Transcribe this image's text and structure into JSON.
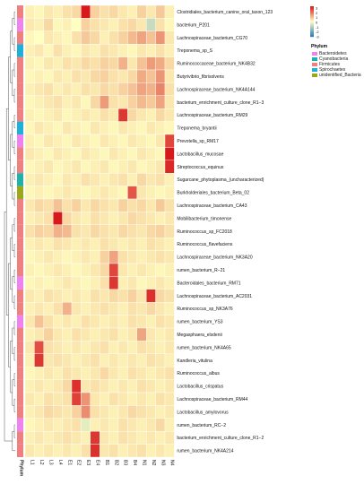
{
  "chart_data": {
    "type": "heatmap",
    "title": "",
    "xlabel": "",
    "ylabel": "",
    "columns": [
      "L1",
      "L2",
      "L3",
      "L4",
      "E1",
      "E2",
      "E3",
      "E4",
      "B1",
      "B2",
      "B3",
      "B4",
      "N1",
      "N2",
      "N3",
      "N4"
    ],
    "rows": [
      "Clostridiales_bacterium_canine_oral_taxon_123",
      "bacterium_P201",
      "Lachnospiraceae_bacterium_CG70",
      "Treponema_sp_S",
      "Ruminococcaceae_bacterium_NK4B32",
      "Butyrivibrio_fibrisolvens",
      "Lachnospiraceae_bacterium_NK4A144",
      "bacterium_enrichment_culture_clone_R1−3",
      "Lachnospiraceae_bacterium_RM29",
      "Treponema_bryantii",
      "Prevotella_sp_RM17",
      "Lactobacillus_mucosae",
      "Streptococcus_equinus",
      "Sugarcane_phytoplasma_(uncharacterized)",
      "Burkholderiales_bacterium_Beta_02",
      "Lachnospiraceae_bacterium_CA43",
      "Mobilibacterium_timonense",
      "Ruminococcus_sp_FC2018",
      "Ruminococcus_flavefaciens",
      "Lachnospiraceae_bacterium_NK3A20",
      "rumen_bacterium_R−21",
      "Bacteroidales_bacterium_RM71",
      "Lachnospiraceae_bacterium_AC2031",
      "Ruminococcus_sp_NK3A76",
      "rumen_bacterium_YS3",
      "Megasphaera_elsdenii",
      "rumen_bacterium_NK4A65",
      "Kandleria_vitulina",
      "Ruminococcus_albus",
      "Lactobacillus_crispatus",
      "Lachnospiraceae_bacterium_RM44",
      "Lactobacillus_amylovorus",
      "rumen_bacterium_RC−2",
      "bacterium_enrichment_culture_clone_R1−2",
      "rumen_bacterium_NK4A214"
    ],
    "row_phylum": [
      "Firmicutes",
      "Bacteroidetes",
      "Firmicutes",
      "Spirochaetes",
      "Firmicutes",
      "Firmicutes",
      "Firmicutes",
      "Firmicutes",
      "Firmicutes",
      "Spirochaetes",
      "Bacteroidetes",
      "Firmicutes",
      "Firmicutes",
      "Cyanobacteria",
      "unidentified_Bacteria",
      "Firmicutes",
      "Firmicutes",
      "Firmicutes",
      "Firmicutes",
      "Firmicutes",
      "Firmicutes",
      "Bacteroidetes",
      "Firmicutes",
      "Firmicutes",
      "Bacteroidetes",
      "Firmicutes",
      "Firmicutes",
      "Firmicutes",
      "Firmicutes",
      "Firmicutes",
      "Firmicutes",
      "Firmicutes",
      "Bacteroidetes",
      "Firmicutes",
      "Firmicutes"
    ],
    "values": [
      [
        0.2,
        0.1,
        0.3,
        0.2,
        0.4,
        0.5,
        3.0,
        0.6,
        0.4,
        0.5,
        0.3,
        0.2,
        0.6,
        0.3,
        0.7,
        0.2
      ],
      [
        0.3,
        0.2,
        0.5,
        0.1,
        0.2,
        0.0,
        0.6,
        0.4,
        0.3,
        0.2,
        0.4,
        0.5,
        0.3,
        -0.8,
        0.4,
        0.1
      ],
      [
        0.1,
        0.0,
        0.3,
        0.2,
        0.1,
        0.4,
        0.7,
        0.5,
        0.2,
        0.4,
        0.6,
        0.9,
        1.2,
        0.8,
        1.4,
        0.3
      ],
      [
        0.2,
        0.3,
        0.1,
        0.4,
        0.2,
        0.1,
        0.3,
        0.2,
        0.4,
        0.3,
        0.2,
        0.1,
        0.3,
        0.2,
        0.4,
        0.2
      ],
      [
        0.2,
        0.1,
        0.3,
        0.2,
        0.4,
        0.3,
        0.5,
        0.4,
        0.6,
        0.5,
        1.0,
        0.3,
        0.8,
        1.3,
        1.1,
        0.5
      ],
      [
        0.1,
        0.2,
        0.1,
        0.3,
        0.2,
        0.4,
        0.3,
        0.5,
        0.6,
        0.4,
        0.3,
        0.5,
        1.1,
        0.8,
        1.4,
        0.3
      ],
      [
        0.2,
        0.3,
        0.4,
        0.2,
        0.3,
        0.2,
        0.4,
        0.3,
        0.5,
        0.4,
        0.6,
        0.8,
        1.2,
        1.0,
        1.6,
        0.4
      ],
      [
        0.1,
        0.2,
        0.3,
        0.4,
        0.2,
        0.3,
        0.1,
        0.5,
        1.3,
        0.4,
        0.3,
        0.6,
        0.9,
        0.7,
        1.2,
        0.3
      ],
      [
        0.2,
        0.1,
        0.2,
        0.3,
        0.1,
        0.2,
        0.3,
        0.2,
        0.4,
        0.3,
        2.6,
        0.5,
        0.3,
        0.2,
        0.5,
        0.3
      ],
      [
        0.1,
        0.3,
        0.2,
        0.1,
        0.3,
        0.2,
        0.1,
        0.3,
        0.2,
        0.1,
        0.3,
        0.2,
        0.1,
        0.3,
        0.2,
        0.1
      ],
      [
        0.2,
        0.1,
        0.3,
        0.2,
        0.1,
        0.3,
        0.2,
        0.1,
        0.3,
        0.2,
        0.1,
        0.3,
        0.2,
        0.1,
        0.3,
        2.4
      ],
      [
        0.3,
        0.2,
        0.1,
        0.3,
        0.2,
        0.1,
        0.3,
        0.2,
        0.1,
        0.3,
        0.2,
        0.1,
        0.3,
        0.2,
        0.1,
        3.0
      ],
      [
        0.1,
        0.2,
        0.3,
        0.1,
        0.2,
        0.3,
        0.1,
        0.2,
        0.3,
        0.1,
        0.2,
        0.3,
        0.1,
        0.2,
        0.3,
        2.8
      ],
      [
        0.2,
        0.3,
        0.2,
        0.1,
        0.3,
        0.2,
        0.4,
        0.3,
        0.2,
        0.3,
        0.4,
        0.2,
        0.5,
        0.3,
        0.4,
        0.2
      ],
      [
        0.1,
        0.2,
        0.1,
        0.2,
        0.3,
        0.2,
        0.1,
        0.2,
        0.3,
        0.2,
        0.1,
        2.2,
        0.3,
        0.2,
        0.1,
        0.2
      ],
      [
        0.3,
        0.5,
        0.4,
        0.8,
        0.4,
        0.6,
        0.3,
        0.5,
        0.4,
        0.3,
        0.6,
        0.4,
        0.5,
        0.3,
        0.7,
        0.4
      ],
      [
        0.2,
        0.3,
        0.4,
        3.0,
        0.5,
        0.3,
        0.2,
        0.4,
        0.3,
        0.2,
        0.3,
        0.5,
        0.4,
        0.3,
        0.2,
        0.3
      ],
      [
        0.4,
        0.6,
        0.5,
        1.0,
        0.9,
        0.4,
        0.3,
        0.5,
        0.4,
        0.3,
        0.5,
        0.4,
        0.3,
        0.5,
        0.6,
        0.4
      ],
      [
        0.2,
        0.3,
        0.2,
        0.4,
        0.3,
        0.2,
        0.3,
        0.2,
        0.4,
        0.3,
        0.2,
        0.3,
        0.2,
        0.4,
        0.3,
        0.2
      ],
      [
        0.1,
        0.2,
        0.3,
        0.2,
        0.1,
        0.2,
        0.3,
        0.2,
        0.6,
        1.2,
        0.4,
        0.3,
        0.2,
        0.3,
        0.4,
        0.3
      ],
      [
        0.2,
        0.1,
        0.2,
        0.3,
        0.2,
        0.1,
        0.2,
        0.3,
        0.5,
        2.4,
        0.3,
        0.2,
        0.3,
        0.2,
        0.1,
        0.2
      ],
      [
        0.1,
        0.2,
        0.1,
        0.2,
        0.3,
        0.2,
        0.1,
        0.2,
        0.4,
        2.6,
        0.2,
        0.3,
        0.1,
        0.2,
        0.3,
        0.2
      ],
      [
        0.3,
        0.2,
        0.4,
        0.3,
        0.2,
        0.3,
        0.2,
        0.4,
        0.3,
        0.5,
        0.4,
        0.6,
        0.3,
        2.7,
        0.5,
        0.4
      ],
      [
        0.2,
        0.3,
        0.2,
        0.4,
        1.0,
        0.3,
        0.2,
        0.3,
        0.4,
        0.3,
        0.2,
        0.4,
        0.3,
        0.5,
        0.3,
        0.2
      ],
      [
        0.3,
        0.8,
        0.4,
        0.2,
        0.3,
        0.2,
        0.4,
        0.3,
        0.2,
        0.3,
        0.2,
        0.4,
        0.3,
        0.2,
        0.4,
        0.3
      ],
      [
        0.2,
        0.3,
        0.6,
        0.3,
        0.2,
        0.4,
        0.3,
        0.2,
        0.3,
        0.4,
        0.2,
        0.3,
        1.2,
        0.3,
        0.2,
        0.3
      ],
      [
        0.3,
        2.3,
        0.4,
        0.3,
        0.2,
        0.3,
        0.2,
        0.3,
        0.4,
        0.2,
        0.3,
        0.2,
        0.4,
        0.3,
        0.2,
        0.3
      ],
      [
        0.2,
        2.6,
        0.3,
        0.4,
        0.3,
        0.2,
        0.3,
        0.4,
        0.2,
        0.3,
        0.2,
        0.3,
        0.2,
        0.4,
        0.3,
        0.2
      ],
      [
        0.1,
        0.2,
        0.3,
        0.2,
        0.4,
        0.3,
        0.2,
        0.3,
        0.5,
        0.3,
        0.2,
        0.4,
        0.3,
        0.2,
        0.3,
        0.4
      ],
      [
        0.2,
        0.3,
        0.2,
        0.3,
        0.5,
        2.7,
        0.3,
        0.4,
        0.3,
        0.2,
        0.3,
        0.2,
        0.4,
        0.3,
        0.2,
        0.3
      ],
      [
        0.3,
        0.2,
        0.4,
        0.3,
        0.4,
        2.5,
        1.4,
        0.3,
        0.2,
        0.4,
        0.3,
        0.2,
        0.3,
        0.2,
        0.4,
        0.3
      ],
      [
        0.2,
        0.3,
        0.5,
        0.4,
        0.3,
        0.6,
        1.5,
        0.4,
        0.3,
        0.2,
        0.3,
        0.5,
        0.4,
        0.3,
        0.2,
        0.3
      ],
      [
        0.1,
        0.2,
        0.3,
        0.2,
        0.3,
        0.4,
        -0.4,
        0.2,
        0.3,
        0.2,
        0.4,
        0.3,
        0.2,
        0.3,
        0.5,
        0.2
      ],
      [
        0.2,
        0.3,
        0.2,
        0.3,
        0.4,
        0.3,
        0.2,
        2.6,
        0.3,
        0.2,
        0.4,
        0.3,
        0.2,
        0.3,
        0.2,
        0.3
      ],
      [
        0.3,
        0.2,
        0.3,
        0.2,
        0.3,
        0.2,
        0.4,
        2.7,
        0.3,
        0.4,
        0.2,
        0.3,
        0.4,
        0.2,
        0.3,
        0.2
      ]
    ],
    "color_scale": {
      "ticks": [
        3,
        2,
        1,
        0,
        -1,
        -2,
        -3
      ],
      "colors": {
        "min": "#2c7bb6",
        "mid": "#ffffbf",
        "max": "#d7191c"
      }
    },
    "phylum_legend": {
      "title": "Phylum",
      "items": [
        {
          "name": "Bacteroidetes",
          "color": "#ee82ee"
        },
        {
          "name": "Cyanobacteria",
          "color": "#20b2aa"
        },
        {
          "name": "Firmicutes",
          "color": "#f08080"
        },
        {
          "name": "Spirochaetes",
          "color": "#1fb0d8"
        },
        {
          "name": "unidentified_Bacteria",
          "color": "#9aa81a"
        }
      ]
    },
    "annotation_label": "Phylum"
  }
}
